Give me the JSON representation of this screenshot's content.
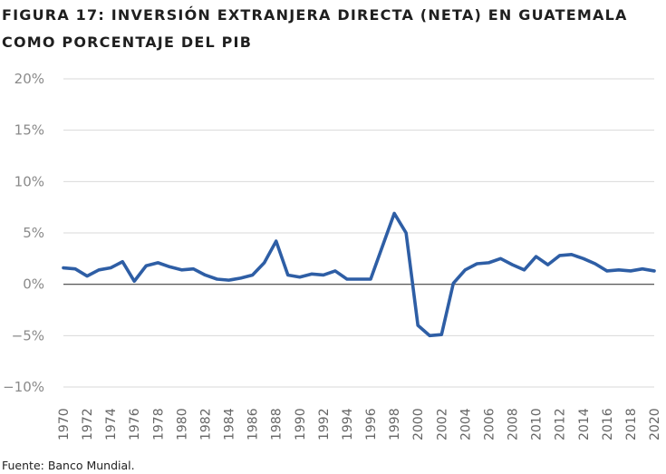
{
  "chart_data": {
    "type": "line",
    "title": "FIGURA 17: INVERSIÓN EXTRANJERA DIRECTA (NETA) EN GUATEMALA COMO PORCENTAJE DEL PIB",
    "source": "Fuente: Banco Mundial.",
    "xlabel": "",
    "ylabel": "",
    "ylim": [
      -10,
      20
    ],
    "yticks": [
      -10,
      -5,
      0,
      5,
      10,
      15,
      20
    ],
    "ytick_labels": [
      "−10%",
      "−5%",
      "0%",
      "5%",
      "10%",
      "15%",
      "20%"
    ],
    "xlim": [
      1970,
      2020
    ],
    "xticks": [
      1970,
      1972,
      1974,
      1976,
      1978,
      1980,
      1982,
      1984,
      1986,
      1988,
      1990,
      1992,
      1994,
      1996,
      1998,
      2000,
      2002,
      2004,
      2006,
      2008,
      2010,
      2012,
      2014,
      2016,
      2018,
      2020
    ],
    "grid": true,
    "legend": "none",
    "colors": {
      "line": "#2e5ea5",
      "grid": "#d9d9d9",
      "zero_line": "#404040"
    },
    "x": [
      1970,
      1971,
      1972,
      1973,
      1974,
      1975,
      1976,
      1977,
      1978,
      1979,
      1980,
      1981,
      1982,
      1983,
      1984,
      1985,
      1986,
      1987,
      1988,
      1989,
      1990,
      1991,
      1992,
      1993,
      1994,
      1995,
      1996,
      1997,
      1998,
      1999,
      2000,
      2001,
      2002,
      2003,
      2004,
      2005,
      2006,
      2007,
      2008,
      2009,
      2010,
      2011,
      2012,
      2013,
      2014,
      2015,
      2016,
      2017,
      2018,
      2019,
      2020
    ],
    "series": [
      {
        "values": [
          1.6,
          1.5,
          0.8,
          1.4,
          1.6,
          2.2,
          0.3,
          1.8,
          2.1,
          1.7,
          1.4,
          1.5,
          0.9,
          0.5,
          0.4,
          0.6,
          0.9,
          2.1,
          4.2,
          0.9,
          0.7,
          1.0,
          0.9,
          1.3,
          0.5,
          0.5,
          0.5,
          3.7,
          6.9,
          5.0,
          -4.0,
          -5.0,
          -4.9,
          0.1,
          1.4,
          2.0,
          2.1,
          2.5,
          1.9,
          1.4,
          2.7,
          1.9,
          2.8,
          2.9,
          2.5,
          2.0,
          1.3,
          1.4,
          1.3,
          1.5,
          1.3
        ]
      }
    ]
  }
}
